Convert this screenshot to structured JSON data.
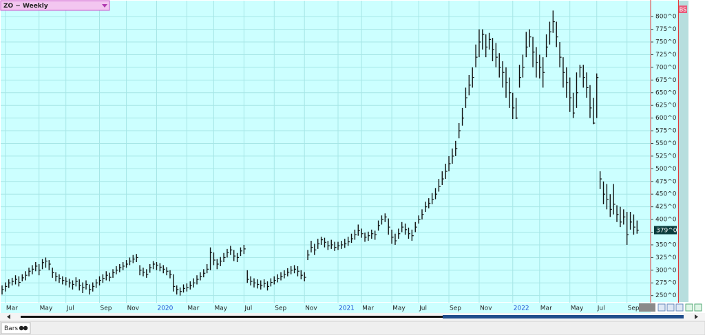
{
  "symbol_label": "ZO ~ Weekly",
  "badge": "BS",
  "footer": {
    "label": "Bars"
  },
  "chart_data": {
    "type": "hlc",
    "color": "#111111",
    "grid": true,
    "ylim": [
      236,
      826
    ],
    "yticks": [
      {
        "value": 250,
        "label": "250^0"
      },
      {
        "value": 275,
        "label": "275^0"
      },
      {
        "value": 300,
        "label": "300^0"
      },
      {
        "value": 325,
        "label": "325^0"
      },
      {
        "value": 350,
        "label": "350^0"
      },
      {
        "value": 375,
        "label": "375^0"
      },
      {
        "value": 400,
        "label": "400^0"
      },
      {
        "value": 425,
        "label": "425^0"
      },
      {
        "value": 450,
        "label": "450^0"
      },
      {
        "value": 475,
        "label": "475^0"
      },
      {
        "value": 500,
        "label": "500^0"
      },
      {
        "value": 525,
        "label": "525^0"
      },
      {
        "value": 550,
        "label": "550^0"
      },
      {
        "value": 575,
        "label": "575^0"
      },
      {
        "value": 600,
        "label": "600^0"
      },
      {
        "value": 625,
        "label": "625^0"
      },
      {
        "value": 650,
        "label": "650^0"
      },
      {
        "value": 675,
        "label": "675^0"
      },
      {
        "value": 700,
        "label": "700^0"
      },
      {
        "value": 725,
        "label": "725^0"
      },
      {
        "value": 750,
        "label": "750^0"
      },
      {
        "value": 775,
        "label": "775^0"
      },
      {
        "value": 800,
        "label": "800^0"
      }
    ],
    "categories": [
      null,
      "Mar",
      null,
      null,
      null,
      null,
      null,
      null,
      null,
      null,
      null,
      "May",
      null,
      null,
      null,
      null,
      null,
      null,
      null,
      "Jul",
      null,
      null,
      null,
      null,
      null,
      null,
      null,
      null,
      null,
      "Sep",
      null,
      null,
      null,
      null,
      null,
      null,
      null,
      "Nov",
      null,
      null,
      null,
      null,
      null,
      null,
      null,
      null,
      "2020",
      null,
      null,
      null,
      null,
      null,
      null,
      null,
      null,
      "Mar",
      null,
      null,
      null,
      null,
      null,
      null,
      null,
      "May",
      null,
      null,
      null,
      null,
      null,
      null,
      null,
      null,
      "Jul",
      null,
      null,
      null,
      null,
      null,
      null,
      null,
      null,
      "Sep",
      null,
      null,
      null,
      null,
      null,
      null,
      null,
      null,
      "Nov",
      null,
      null,
      null,
      null,
      null,
      null,
      null,
      null,
      null,
      "2021",
      null,
      null,
      null,
      null,
      null,
      null,
      "Mar",
      null,
      null,
      null,
      null,
      null,
      null,
      null,
      null,
      "May",
      null,
      null,
      null,
      null,
      null,
      null,
      null,
      "Jul",
      null,
      null,
      null,
      null,
      null,
      null,
      null,
      null,
      "Sep",
      null,
      null,
      null,
      null,
      null,
      null,
      null,
      null,
      "Nov",
      null,
      null,
      null,
      null,
      null,
      null,
      null,
      null,
      null,
      "2022",
      null,
      null,
      null,
      null,
      null,
      null,
      null,
      "Mar",
      null,
      null,
      null,
      null,
      null,
      null,
      null,
      null,
      "May",
      null,
      null,
      null,
      null,
      null,
      null,
      null,
      "Jul",
      null,
      null,
      null,
      null,
      null,
      null,
      null,
      null,
      "Sep",
      null,
      null,
      null
    ],
    "high": [
      270,
      276,
      282,
      285,
      290,
      288,
      292,
      298,
      305,
      310,
      316,
      312,
      322,
      325,
      320,
      305,
      296,
      292,
      288,
      286,
      283,
      280,
      286,
      282,
      276,
      280,
      272,
      276,
      282,
      288,
      292,
      298,
      295,
      302,
      308,
      312,
      316,
      320,
      325,
      330,
      332,
      310,
      305,
      302,
      312,
      318,
      316,
      314,
      310,
      306,
      300,
      292,
      270,
      266,
      272,
      274,
      278,
      284,
      290,
      296,
      302,
      312,
      345,
      335,
      322,
      326,
      334,
      342,
      348,
      340,
      334,
      345,
      350,
      300,
      288,
      284,
      282,
      280,
      282,
      278,
      284,
      288,
      292,
      296,
      300,
      304,
      308,
      310,
      308,
      300,
      296,
      340,
      358,
      352,
      362,
      366,
      364,
      358,
      360,
      356,
      356,
      358,
      362,
      366,
      372,
      380,
      390,
      382,
      374,
      376,
      380,
      378,
      398,
      408,
      412,
      402,
      380,
      372,
      382,
      395,
      392,
      384,
      380,
      395,
      408,
      420,
      435,
      442,
      452,
      462,
      480,
      495,
      510,
      525,
      540,
      555,
      590,
      620,
      660,
      685,
      700,
      745,
      775,
      775,
      765,
      768,
      758,
      748,
      728,
      712,
      700,
      680,
      650,
      640,
      705,
      725,
      770,
      775,
      760,
      740,
      725,
      720,
      765,
      790,
      812,
      790,
      750,
      720,
      700,
      680,
      650,
      690,
      705,
      705,
      690,
      665,
      640,
      688,
      495,
      475,
      470,
      450,
      470,
      428,
      425,
      420,
      415,
      415,
      410,
      398
    ],
    "low": [
      252,
      258,
      265,
      270,
      272,
      268,
      278,
      280,
      288,
      292,
      298,
      290,
      302,
      305,
      300,
      285,
      278,
      275,
      272,
      270,
      266,
      262,
      268,
      260,
      255,
      262,
      252,
      258,
      265,
      270,
      275,
      280,
      278,
      285,
      292,
      296,
      300,
      305,
      310,
      314,
      316,
      290,
      288,
      285,
      295,
      302,
      300,
      298,
      294,
      290,
      284,
      258,
      252,
      250,
      256,
      258,
      262,
      266,
      272,
      280,
      286,
      294,
      300,
      310,
      302,
      308,
      316,
      325,
      330,
      318,
      316,
      328,
      332,
      275,
      270,
      266,
      264,
      262,
      266,
      260,
      268,
      272,
      276,
      280,
      284,
      288,
      292,
      294,
      288,
      282,
      278,
      320,
      335,
      330,
      342,
      350,
      345,
      340,
      342,
      338,
      340,
      342,
      344,
      348,
      354,
      360,
      368,
      364,
      356,
      358,
      362,
      360,
      378,
      390,
      395,
      370,
      352,
      350,
      362,
      375,
      370,
      362,
      358,
      375,
      392,
      400,
      415,
      422,
      430,
      440,
      455,
      468,
      480,
      495,
      510,
      525,
      560,
      585,
      620,
      645,
      660,
      700,
      720,
      735,
      720,
      735,
      712,
      700,
      680,
      660,
      640,
      620,
      598,
      598,
      660,
      680,
      720,
      740,
      700,
      680,
      678,
      660,
      720,
      745,
      768,
      740,
      700,
      660,
      640,
      612,
      600,
      620,
      680,
      660,
      640,
      600,
      588,
      600,
      460,
      430,
      420,
      405,
      410,
      395,
      385,
      390,
      350,
      380,
      370,
      372
    ],
    "close": [
      262,
      268,
      275,
      278,
      282,
      276,
      285,
      290,
      298,
      302,
      308,
      300,
      315,
      318,
      312,
      295,
      288,
      284,
      280,
      278,
      275,
      272,
      278,
      270,
      266,
      272,
      262,
      268,
      275,
      280,
      284,
      290,
      286,
      295,
      300,
      305,
      308,
      312,
      318,
      322,
      325,
      300,
      296,
      292,
      305,
      312,
      310,
      306,
      302,
      298,
      292,
      268,
      262,
      258,
      264,
      266,
      270,
      275,
      282,
      288,
      294,
      302,
      335,
      320,
      312,
      318,
      325,
      335,
      340,
      328,
      325,
      338,
      342,
      282,
      278,
      275,
      272,
      270,
      274,
      268,
      276,
      280,
      284,
      288,
      292,
      296,
      300,
      302,
      298,
      290,
      286,
      330,
      345,
      340,
      352,
      360,
      355,
      348,
      350,
      345,
      348,
      350,
      352,
      356,
      362,
      370,
      378,
      372,
      365,
      368,
      372,
      370,
      388,
      400,
      405,
      385,
      365,
      358,
      372,
      385,
      380,
      372,
      368,
      385,
      400,
      410,
      425,
      432,
      440,
      450,
      465,
      480,
      495,
      510,
      525,
      540,
      575,
      600,
      640,
      665,
      680,
      720,
      750,
      765,
      740,
      755,
      735,
      720,
      700,
      690,
      670,
      650,
      620,
      600,
      680,
      700,
      740,
      760,
      730,
      710,
      700,
      690,
      740,
      770,
      790,
      760,
      720,
      690,
      670,
      640,
      610,
      650,
      700,
      680,
      660,
      620,
      590,
      680,
      480,
      450,
      440,
      420,
      430,
      410,
      395,
      405,
      370,
      395,
      385,
      379
    ],
    "close_label": "379^0"
  }
}
